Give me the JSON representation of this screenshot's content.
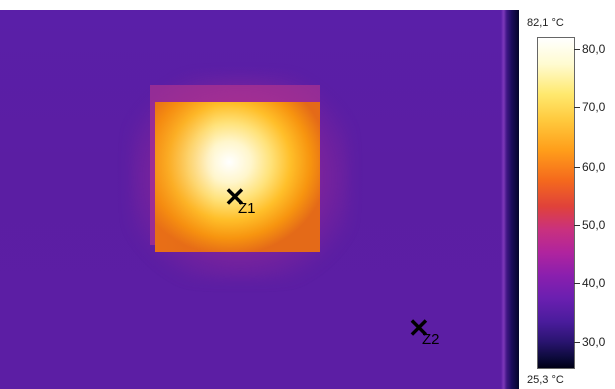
{
  "thermal_image": {
    "markers": [
      {
        "id": "z1",
        "label": "Z1"
      },
      {
        "id": "z2",
        "label": "Z2"
      }
    ]
  },
  "scale": {
    "max_label": "82,1 °C",
    "min_label": "25,3 °C",
    "ticks": [
      "80,0",
      "70,0",
      "60,0",
      "50,0",
      "40,0",
      "30,0"
    ]
  }
}
